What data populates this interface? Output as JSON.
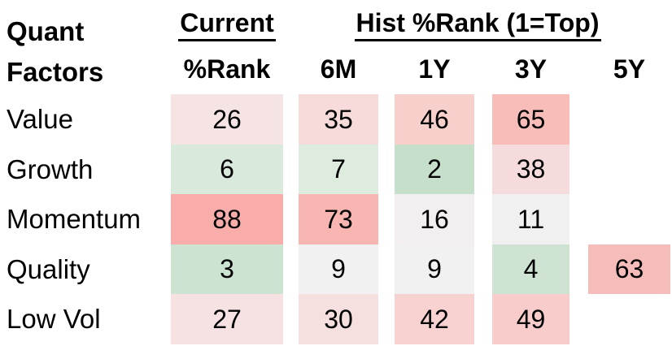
{
  "title": {
    "line1": "Quant",
    "line2": "Factors"
  },
  "group_headers": {
    "current": "Current",
    "hist": "Hist %Rank (1=Top)"
  },
  "column_headers": {
    "rank": "%Rank",
    "m6": "6M",
    "y1": "1Y",
    "y3": "3Y",
    "y5": "5Y"
  },
  "rows": [
    {
      "label": "Value",
      "cells": [
        {
          "value": "26",
          "bg": "#F6E3E3"
        },
        {
          "value": "35",
          "bg": "#F6DBDA"
        },
        {
          "value": "46",
          "bg": "#F7CFCB"
        },
        {
          "value": "65",
          "bg": "#F8BDB9"
        },
        null
      ]
    },
    {
      "label": "Growth",
      "cells": [
        {
          "value": "6",
          "bg": "#D9E9DC"
        },
        {
          "value": "7",
          "bg": "#DDECDF"
        },
        {
          "value": "2",
          "bg": "#C6DFCB"
        },
        {
          "value": "38",
          "bg": "#F5DBDC"
        },
        null
      ]
    },
    {
      "label": "Momentum",
      "cells": [
        {
          "value": "88",
          "bg": "#F9ADAA"
        },
        {
          "value": "73",
          "bg": "#F8B5B1"
        },
        {
          "value": "16",
          "bg": "#F3EEEF"
        },
        {
          "value": "11",
          "bg": "#F1F0F1"
        },
        null
      ]
    },
    {
      "label": "Quality",
      "cells": [
        {
          "value": "3",
          "bg": "#CDE3D1"
        },
        {
          "value": "9",
          "bg": "#F1F1F1"
        },
        {
          "value": "9",
          "bg": "#F1F1F1"
        },
        {
          "value": "4",
          "bg": "#CEE3D2"
        },
        {
          "value": "63",
          "bg": "#F6BCBA"
        }
      ]
    },
    {
      "label": "Low Vol",
      "cells": [
        {
          "value": "27",
          "bg": "#F6E2E2"
        },
        {
          "value": "30",
          "bg": "#F6DFDF"
        },
        {
          "value": "42",
          "bg": "#F7D2D0"
        },
        {
          "value": "49",
          "bg": "#F7CCCA"
        },
        null
      ]
    }
  ],
  "chart_data": {
    "type": "heatmap",
    "title": "Quant Factors — Hist %Rank (1=Top)",
    "rows": [
      "Value",
      "Growth",
      "Momentum",
      "Quality",
      "Low Vol"
    ],
    "columns": [
      "Current %Rank",
      "6M",
      "1Y",
      "3Y",
      "5Y"
    ],
    "values": [
      [
        26,
        35,
        46,
        65,
        null
      ],
      [
        6,
        7,
        2,
        38,
        null
      ],
      [
        88,
        73,
        16,
        11,
        null
      ],
      [
        3,
        9,
        9,
        4,
        63
      ],
      [
        27,
        30,
        42,
        49,
        null
      ]
    ],
    "scale_note": "1=Top (low rank = green, high rank = red)",
    "colors": {
      "strong_green": "#C6DFCB",
      "neutral": "#F1F1F1",
      "strong_red": "#F9ADAA"
    },
    "legend_position": "none",
    "grid": false
  }
}
